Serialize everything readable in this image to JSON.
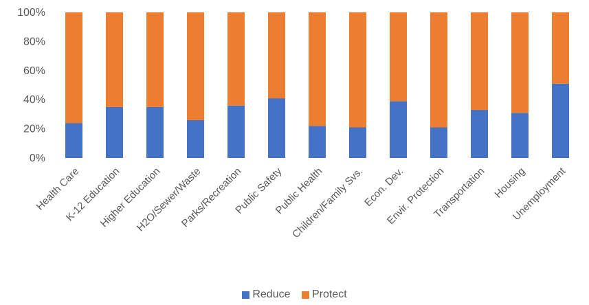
{
  "chart_data": {
    "type": "bar",
    "stacked": true,
    "categories": [
      "Health Care",
      "K-12 Education",
      "Higher Education",
      "H2O/Sewer/Waste",
      "Parks/Recreation",
      "Public Safety",
      "Public Health",
      "Children/Family Svs.",
      "Econ. Dev.",
      "Envir. Protection",
      "Transportation",
      "Housing",
      "Unemployment"
    ],
    "series": [
      {
        "name": "Reduce",
        "color": "#4472C4",
        "values": [
          24,
          35,
          35,
          26,
          36,
          41,
          22,
          21,
          39,
          21,
          33,
          31,
          51
        ]
      },
      {
        "name": "Protect",
        "color": "#ED7D31",
        "values": [
          76,
          65,
          65,
          74,
          64,
          59,
          78,
          79,
          61,
          79,
          67,
          69,
          49
        ]
      }
    ],
    "yticks": [
      "0%",
      "20%",
      "40%",
      "60%",
      "80%",
      "100%"
    ],
    "ylim": [
      0,
      100
    ],
    "title": "",
    "xlabel": "",
    "ylabel": "",
    "legend": "bottom",
    "grid": false
  }
}
